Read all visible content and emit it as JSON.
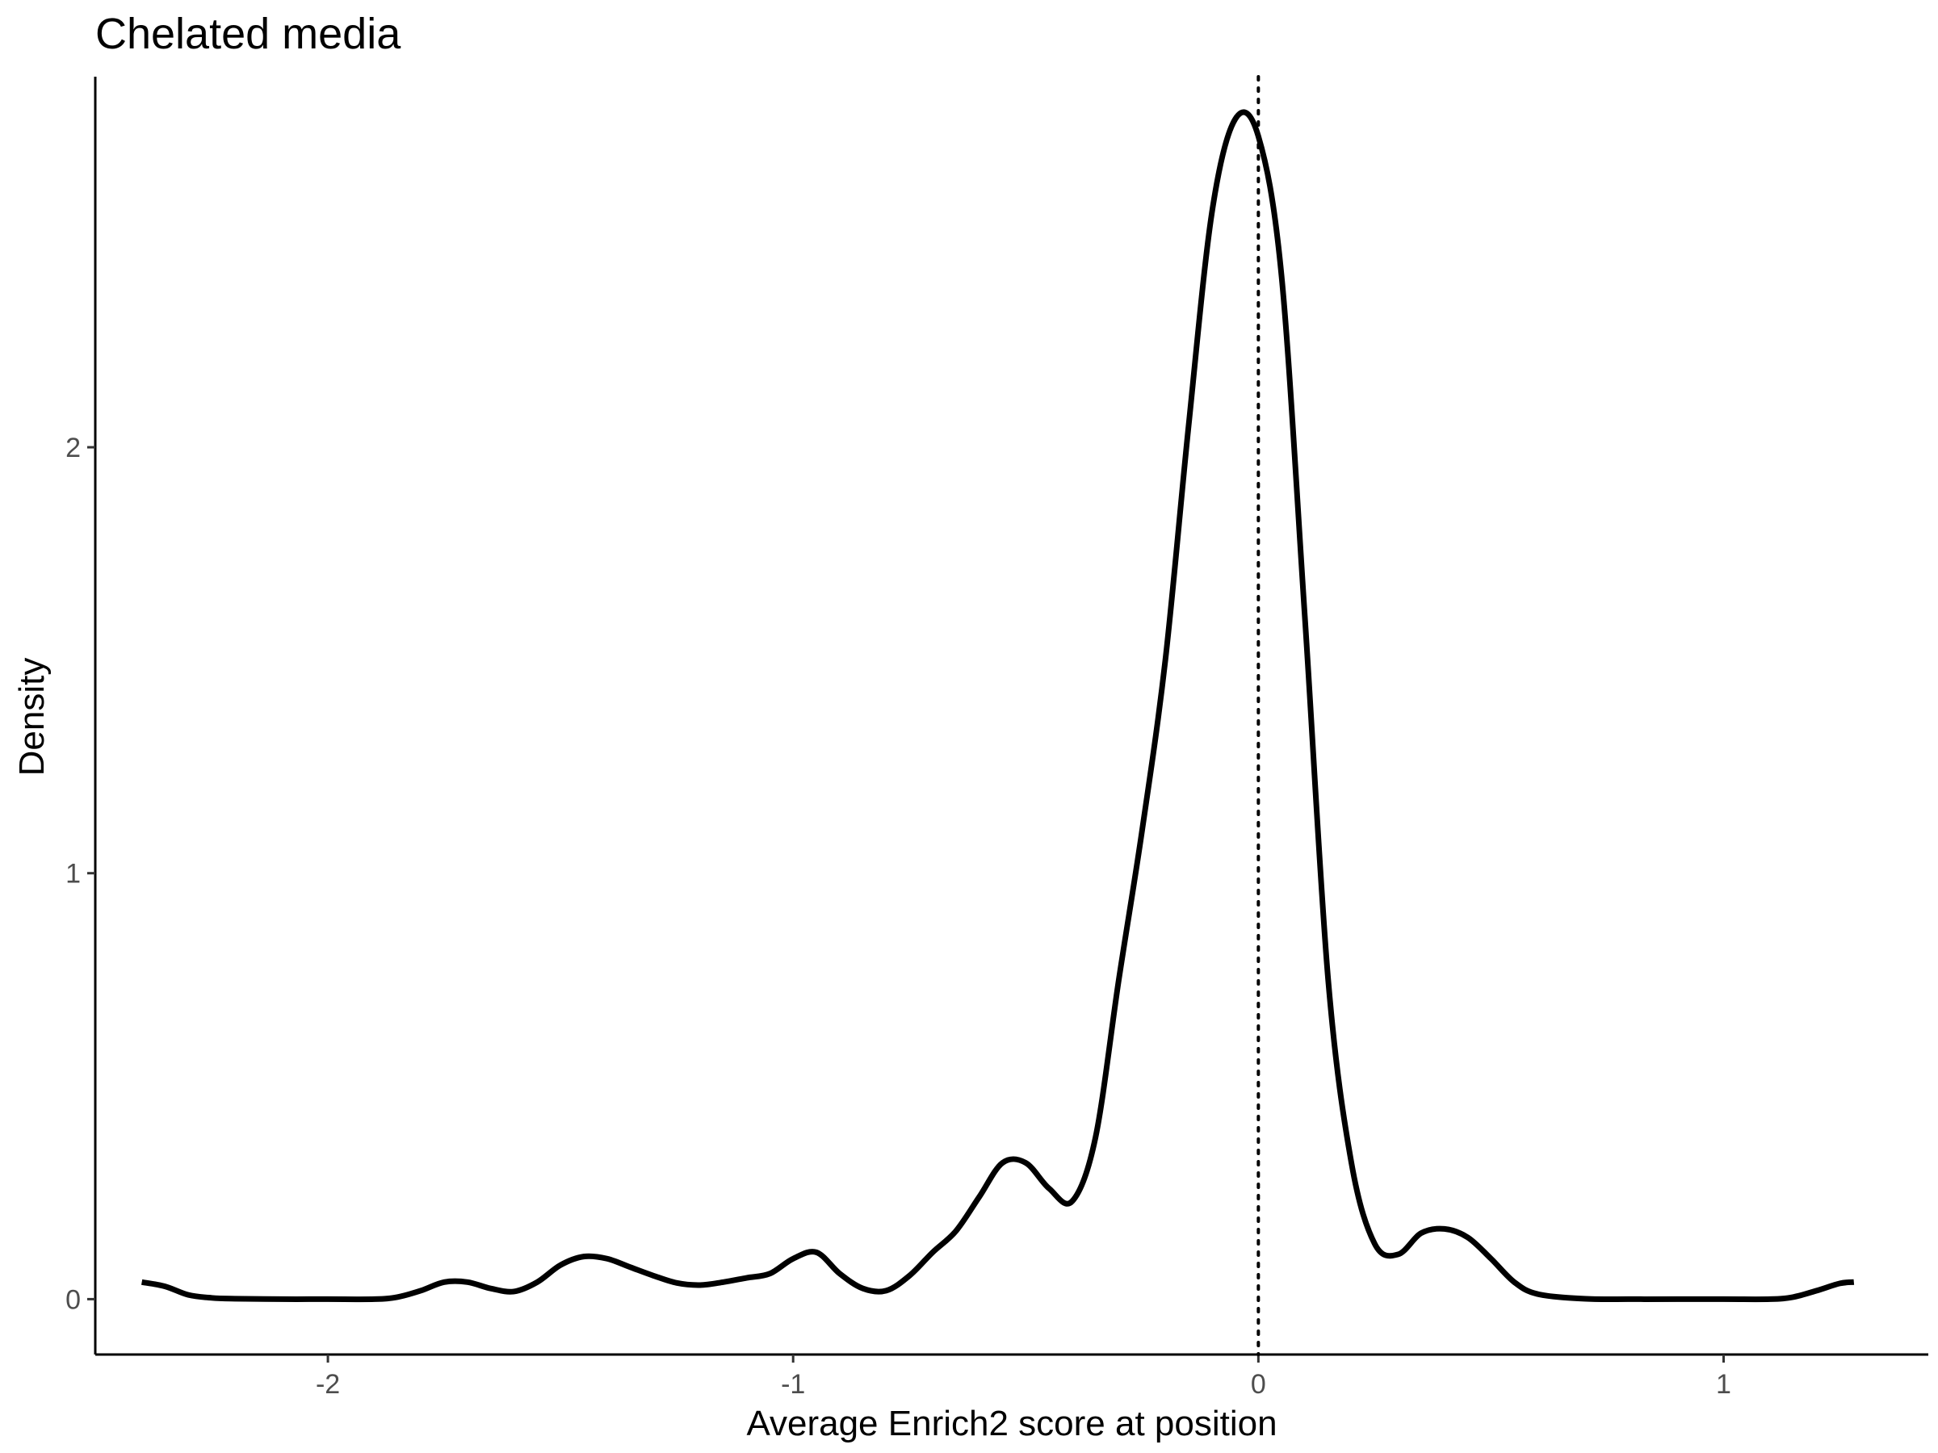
{
  "chart_data": {
    "type": "line",
    "title": "Chelated media",
    "xlabel": "Average Enrich2 score at position",
    "ylabel": "Density",
    "xlim": [
      -2.5,
      1.44
    ],
    "ylim": [
      -0.13,
      2.87
    ],
    "x_ticks": [
      -2,
      -1,
      0,
      1
    ],
    "x_tick_labels": [
      "-2",
      "-1",
      "0",
      "1"
    ],
    "y_ticks": [
      0,
      1,
      2
    ],
    "y_tick_labels": [
      "0",
      "1",
      "2"
    ],
    "grid": false,
    "legend": "none",
    "line_color": "#000000",
    "reference_line": {
      "x": 0,
      "style": "dotted"
    },
    "series": [
      {
        "x": [
          -2.4,
          -2.35,
          -2.3,
          -2.25,
          -2.2,
          -2.1,
          -2.0,
          -1.9,
          -1.85,
          -1.8,
          -1.75,
          -1.7,
          -1.65,
          -1.6,
          -1.55,
          -1.5,
          -1.45,
          -1.4,
          -1.35,
          -1.3,
          -1.25,
          -1.2,
          -1.15,
          -1.1,
          -1.05,
          -1.0,
          -0.95,
          -0.9,
          -0.85,
          -0.8,
          -0.75,
          -0.7,
          -0.65,
          -0.6,
          -0.55,
          -0.5,
          -0.45,
          -0.4,
          -0.35,
          -0.3,
          -0.25,
          -0.2,
          -0.15,
          -0.1,
          -0.05,
          0.0,
          0.05,
          0.1,
          0.15,
          0.2,
          0.25,
          0.3,
          0.35,
          0.4,
          0.45,
          0.5,
          0.55,
          0.6,
          0.7,
          0.8,
          0.9,
          1.0,
          1.1,
          1.15,
          1.2,
          1.25,
          1.28
        ],
        "y": [
          0.04,
          0.03,
          0.01,
          0.003,
          0.001,
          0.0,
          0.0,
          0.0,
          0.005,
          0.02,
          0.04,
          0.04,
          0.025,
          0.018,
          0.04,
          0.08,
          0.1,
          0.095,
          0.075,
          0.055,
          0.038,
          0.033,
          0.04,
          0.05,
          0.06,
          0.095,
          0.11,
          0.06,
          0.025,
          0.02,
          0.055,
          0.11,
          0.16,
          0.24,
          0.32,
          0.32,
          0.26,
          0.23,
          0.38,
          0.75,
          1.1,
          1.5,
          2.05,
          2.55,
          2.77,
          2.73,
          2.4,
          1.6,
          0.75,
          0.32,
          0.13,
          0.105,
          0.155,
          0.165,
          0.145,
          0.095,
          0.04,
          0.012,
          0.001,
          0.0,
          0.0,
          0.0,
          0.0,
          0.005,
          0.02,
          0.037,
          0.04
        ]
      }
    ]
  }
}
